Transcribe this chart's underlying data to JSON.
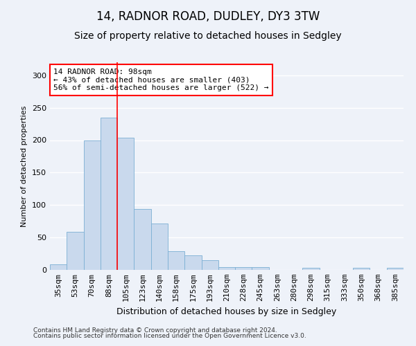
{
  "title1": "14, RADNOR ROAD, DUDLEY, DY3 3TW",
  "title2": "Size of property relative to detached houses in Sedgley",
  "xlabel": "Distribution of detached houses by size in Sedgley",
  "ylabel": "Number of detached properties",
  "categories": [
    "35sqm",
    "53sqm",
    "70sqm",
    "88sqm",
    "105sqm",
    "123sqm",
    "140sqm",
    "158sqm",
    "175sqm",
    "193sqm",
    "210sqm",
    "228sqm",
    "245sqm",
    "263sqm",
    "280sqm",
    "298sqm",
    "315sqm",
    "333sqm",
    "350sqm",
    "368sqm",
    "385sqm"
  ],
  "values": [
    9,
    59,
    200,
    235,
    204,
    94,
    72,
    29,
    22,
    15,
    4,
    4,
    4,
    0,
    0,
    3,
    0,
    0,
    3,
    0,
    3
  ],
  "bar_color": "#c9d9ed",
  "bar_edge_color": "#7bafd4",
  "red_line_x": 3.5,
  "annotation_line1": "14 RADNOR ROAD: 98sqm",
  "annotation_line2": "← 43% of detached houses are smaller (403)",
  "annotation_line3": "56% of semi-detached houses are larger (522) →",
  "annotation_box_color": "white",
  "annotation_box_edge": "red",
  "ylim": [
    0,
    320
  ],
  "yticks": [
    0,
    50,
    100,
    150,
    200,
    250,
    300
  ],
  "footer1": "Contains HM Land Registry data © Crown copyright and database right 2024.",
  "footer2": "Contains public sector information licensed under the Open Government Licence v3.0.",
  "background_color": "#eef2f9",
  "grid_color": "white",
  "title1_fontsize": 12,
  "title2_fontsize": 10,
  "ylabel_fontsize": 8,
  "xlabel_fontsize": 9,
  "annotation_fontsize": 8,
  "tick_fontsize": 7
}
